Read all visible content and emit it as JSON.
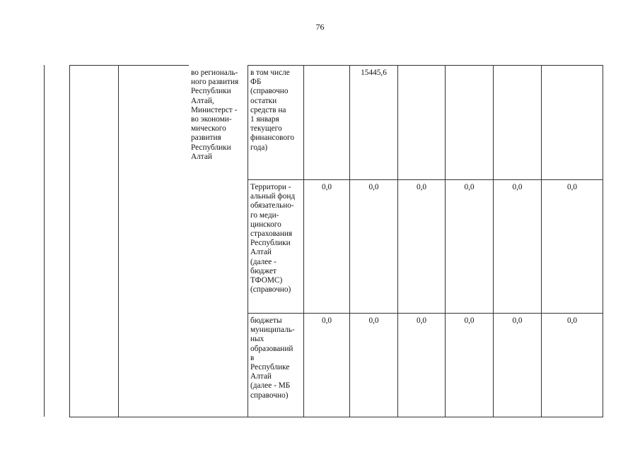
{
  "page_number": "76",
  "table": {
    "responsible_text": "во региональ-\nного развития\nРеспублики\nАлтай,\nМинистерст -\nво экономи-\nмического\nразвития\nРеспублики\nАлтай",
    "rows": [
      {
        "source": "в том числе\nФБ\n(справочно\nостатки\nсредств на\n1 января\nтекущего\nфинансового\nгода)",
        "values": [
          "",
          "15445,6",
          "",
          "",
          "",
          ""
        ]
      },
      {
        "source": "Территори -\nальный фонд\nобязательно-\nго меди-\nцинского\nстрахования\nРеспублики\nАлтай\n(далее -\nбюджет\nТФОМС)\n(справочно)",
        "values": [
          "0,0",
          "0,0",
          "0,0",
          "0,0",
          "0,0",
          "0,0"
        ]
      },
      {
        "source": "бюджеты\nмуниципаль-\nных\nобразований\nв\nРеспублике\nАлтай\n(далее - МБ\nсправочно)",
        "values": [
          "0,0",
          "0,0",
          "0,0",
          "0,0",
          "0,0",
          "0,0"
        ]
      }
    ]
  }
}
